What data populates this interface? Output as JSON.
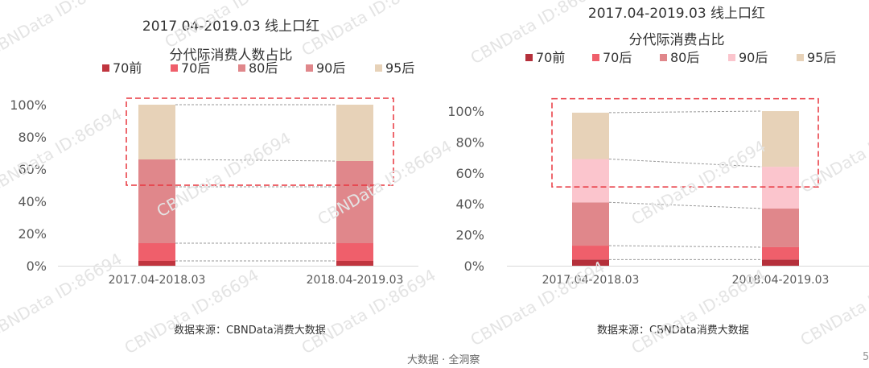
{
  "chart_data": [
    {
      "type": "bar",
      "stacked": true,
      "title": "2017.04-2019.03 线上口红",
      "subtitle": "分代际消费人数占比",
      "categories": [
        "2017.04-2018.03",
        "2018.04-2019.03"
      ],
      "series": [
        {
          "name": "70前",
          "color": "#c0353f",
          "values": [
            3,
            3
          ]
        },
        {
          "name": "70后",
          "color": "#ef5f6b",
          "values": [
            11,
            11
          ]
        },
        {
          "name": "80后",
          "color": "#e0878b",
          "values": [
            35,
            35
          ]
        },
        {
          "name": "90后",
          "color": "#e0878b",
          "values": [
            17,
            16
          ]
        },
        {
          "name": "95后",
          "color": "#e7d2b8",
          "values": [
            34,
            35
          ]
        }
      ],
      "ylim": [
        0,
        100
      ],
      "yticks": [
        "0%",
        "20%",
        "40%",
        "60%",
        "80%",
        "100%"
      ],
      "grid": false,
      "legend_position": "top",
      "highlight_box": {
        "from": 50,
        "to": 104
      }
    },
    {
      "type": "bar",
      "stacked": true,
      "title": "2017.04-2019.03 线上口红",
      "subtitle": "分代际消费占比",
      "categories": [
        "2017.04-2018.03",
        "2018.04-2019.03"
      ],
      "series": [
        {
          "name": "70前",
          "color": "#b5303b",
          "values": [
            4,
            4
          ]
        },
        {
          "name": "70后",
          "color": "#ef5f6b",
          "values": [
            9,
            8
          ]
        },
        {
          "name": "80后",
          "color": "#e0878b",
          "values": [
            28,
            25
          ]
        },
        {
          "name": "90后",
          "color": "#fbc5cd",
          "values": [
            28,
            27
          ]
        },
        {
          "name": "95后",
          "color": "#e7d2b8",
          "values": [
            30,
            36
          ]
        }
      ],
      "ylim": [
        0,
        100
      ],
      "yticks": [
        "0%",
        "20%",
        "40%",
        "60%",
        "80%",
        "100%"
      ],
      "grid": false,
      "legend_position": "top",
      "highlight_box": {
        "from": 51,
        "to": 108
      }
    }
  ],
  "source_left": "数据来源：CBNData消费大数据",
  "source_right": "数据来源：CBNData消费大数据",
  "footer": "大数据 · 全洞察",
  "page_number": "5",
  "watermark": "CBNData ID:86694",
  "colors": {
    "highlight": "#e8363f",
    "connector": "#999999",
    "axis": "#d9d9d9"
  }
}
